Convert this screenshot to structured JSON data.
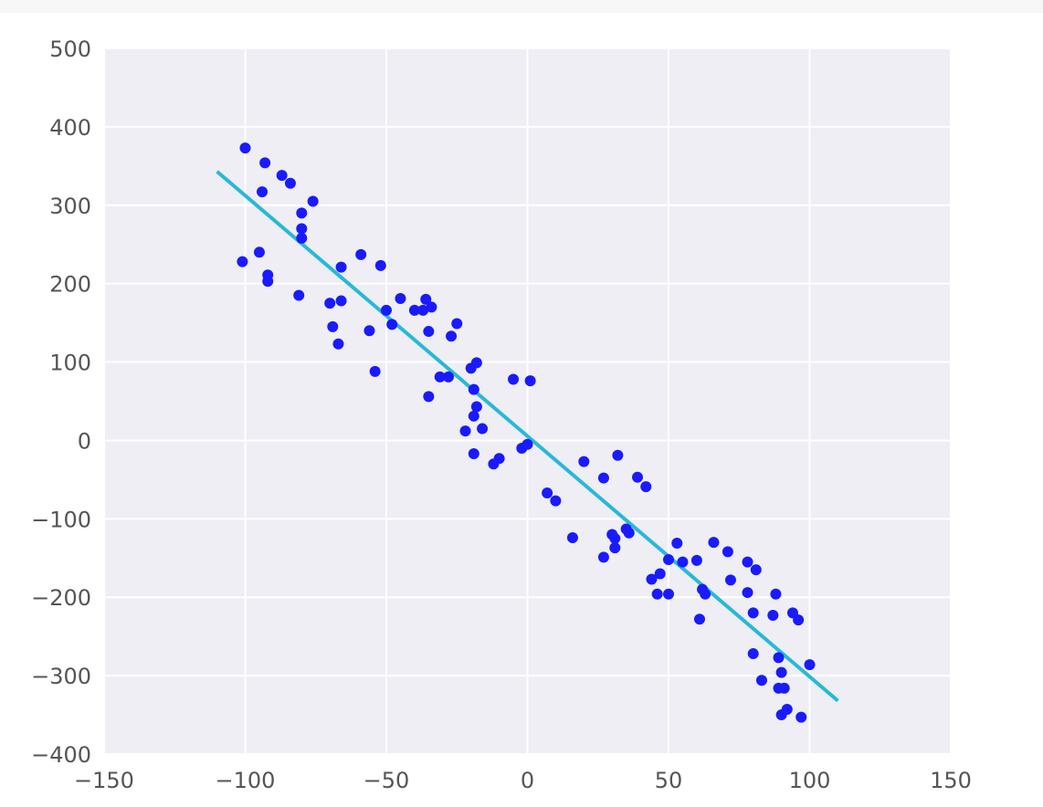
{
  "chart_data": {
    "type": "scatter",
    "title": "",
    "xlabel": "",
    "ylabel": "",
    "xlim": [
      -150,
      150
    ],
    "ylim": [
      -400,
      500
    ],
    "xticks": [
      -150,
      -100,
      -50,
      0,
      50,
      100,
      150
    ],
    "yticks": [
      -400,
      -300,
      -200,
      -100,
      0,
      100,
      200,
      300,
      400,
      500
    ],
    "xtick_labels": [
      "−150",
      "−100",
      "−50",
      "0",
      "50",
      "100",
      "150"
    ],
    "ytick_labels": [
      "−400",
      "−300",
      "−200",
      "−100",
      "0",
      "100",
      "200",
      "300",
      "400",
      "500"
    ],
    "grid": true,
    "colors": {
      "points": "#1a1aff",
      "fit_line": "#29b8d8",
      "background": "#eeeef4"
    },
    "series": [
      {
        "kind": "points",
        "points": [
          [
            -100,
            373
          ],
          [
            -93,
            354
          ],
          [
            -87,
            338
          ],
          [
            -84,
            328
          ],
          [
            -94,
            317
          ],
          [
            -76,
            305
          ],
          [
            -80,
            290
          ],
          [
            -80,
            270
          ],
          [
            -80,
            258
          ],
          [
            -95,
            240
          ],
          [
            -101,
            228
          ],
          [
            -92,
            211
          ],
          [
            -92,
            203
          ],
          [
            -59,
            237
          ],
          [
            -52,
            223
          ],
          [
            -66,
            221
          ],
          [
            -81,
            185
          ],
          [
            -70,
            175
          ],
          [
            -66,
            178
          ],
          [
            -45,
            181
          ],
          [
            -50,
            166
          ],
          [
            -40,
            166
          ],
          [
            -37,
            166
          ],
          [
            -36,
            180
          ],
          [
            -34,
            170
          ],
          [
            -48,
            148
          ],
          [
            -69,
            145
          ],
          [
            -56,
            140
          ],
          [
            -35,
            139
          ],
          [
            -25,
            149
          ],
          [
            -27,
            133
          ],
          [
            -67,
            123
          ],
          [
            -54,
            88
          ],
          [
            -31,
            81
          ],
          [
            -28,
            81
          ],
          [
            -18,
            99
          ],
          [
            -20,
            92
          ],
          [
            -5,
            78
          ],
          [
            1,
            76
          ],
          [
            -35,
            56
          ],
          [
            -19,
            65
          ],
          [
            -18,
            43
          ],
          [
            -19,
            31
          ],
          [
            -22,
            12
          ],
          [
            -16,
            15
          ],
          [
            -19,
            -17
          ],
          [
            -10,
            -23
          ],
          [
            -12,
            -30
          ],
          [
            -2,
            -10
          ],
          [
            0,
            -5
          ],
          [
            20,
            -27
          ],
          [
            32,
            -19
          ],
          [
            27,
            -48
          ],
          [
            39,
            -47
          ],
          [
            42,
            -59
          ],
          [
            7,
            -67
          ],
          [
            10,
            -77
          ],
          [
            16,
            -124
          ],
          [
            30,
            -120
          ],
          [
            31,
            -125
          ],
          [
            35,
            -113
          ],
          [
            36,
            -118
          ],
          [
            31,
            -137
          ],
          [
            27,
            -149
          ],
          [
            53,
            -131
          ],
          [
            66,
            -130
          ],
          [
            71,
            -142
          ],
          [
            50,
            -152
          ],
          [
            55,
            -155
          ],
          [
            60,
            -153
          ],
          [
            78,
            -155
          ],
          [
            81,
            -165
          ],
          [
            44,
            -177
          ],
          [
            47,
            -170
          ],
          [
            72,
            -178
          ],
          [
            62,
            -190
          ],
          [
            63,
            -196
          ],
          [
            46,
            -196
          ],
          [
            50,
            -196
          ],
          [
            78,
            -194
          ],
          [
            88,
            -196
          ],
          [
            80,
            -220
          ],
          [
            87,
            -223
          ],
          [
            94,
            -220
          ],
          [
            96,
            -229
          ],
          [
            61,
            -228
          ],
          [
            80,
            -272
          ],
          [
            89,
            -277
          ],
          [
            100,
            -286
          ],
          [
            83,
            -306
          ],
          [
            90,
            -296
          ],
          [
            89,
            -316
          ],
          [
            91,
            -316
          ],
          [
            92,
            -343
          ],
          [
            90,
            -350
          ],
          [
            97,
            -353
          ]
        ]
      },
      {
        "kind": "fit-line",
        "points": [
          [
            -110,
            343
          ],
          [
            110,
            -332
          ]
        ]
      }
    ]
  }
}
